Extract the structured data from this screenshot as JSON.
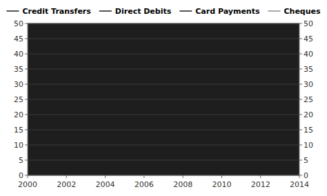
{
  "chart_data": {
    "type": "line",
    "series": [
      {
        "name": "Credit Transfers",
        "color": "#555555",
        "values": []
      },
      {
        "name": "Direct Debits",
        "color": "#555555",
        "values": []
      },
      {
        "name": "Card Payments",
        "color": "#555555",
        "values": []
      },
      {
        "name": "Cheques",
        "color": "#aaaaaa",
        "values": []
      }
    ],
    "xlim": [
      2000,
      2014
    ],
    "xticks": [
      2000,
      2002,
      2004,
      2006,
      2008,
      2010,
      2012,
      2014
    ],
    "ylim": [
      0,
      50
    ],
    "yticks": [
      0,
      5,
      10,
      15,
      20,
      25,
      30,
      35,
      40,
      45,
      50
    ],
    "y2lim": [
      0,
      50
    ],
    "y2ticks": [
      0,
      5,
      10,
      15,
      20,
      25,
      30,
      35,
      40,
      45,
      50
    ],
    "legend": "top"
  }
}
